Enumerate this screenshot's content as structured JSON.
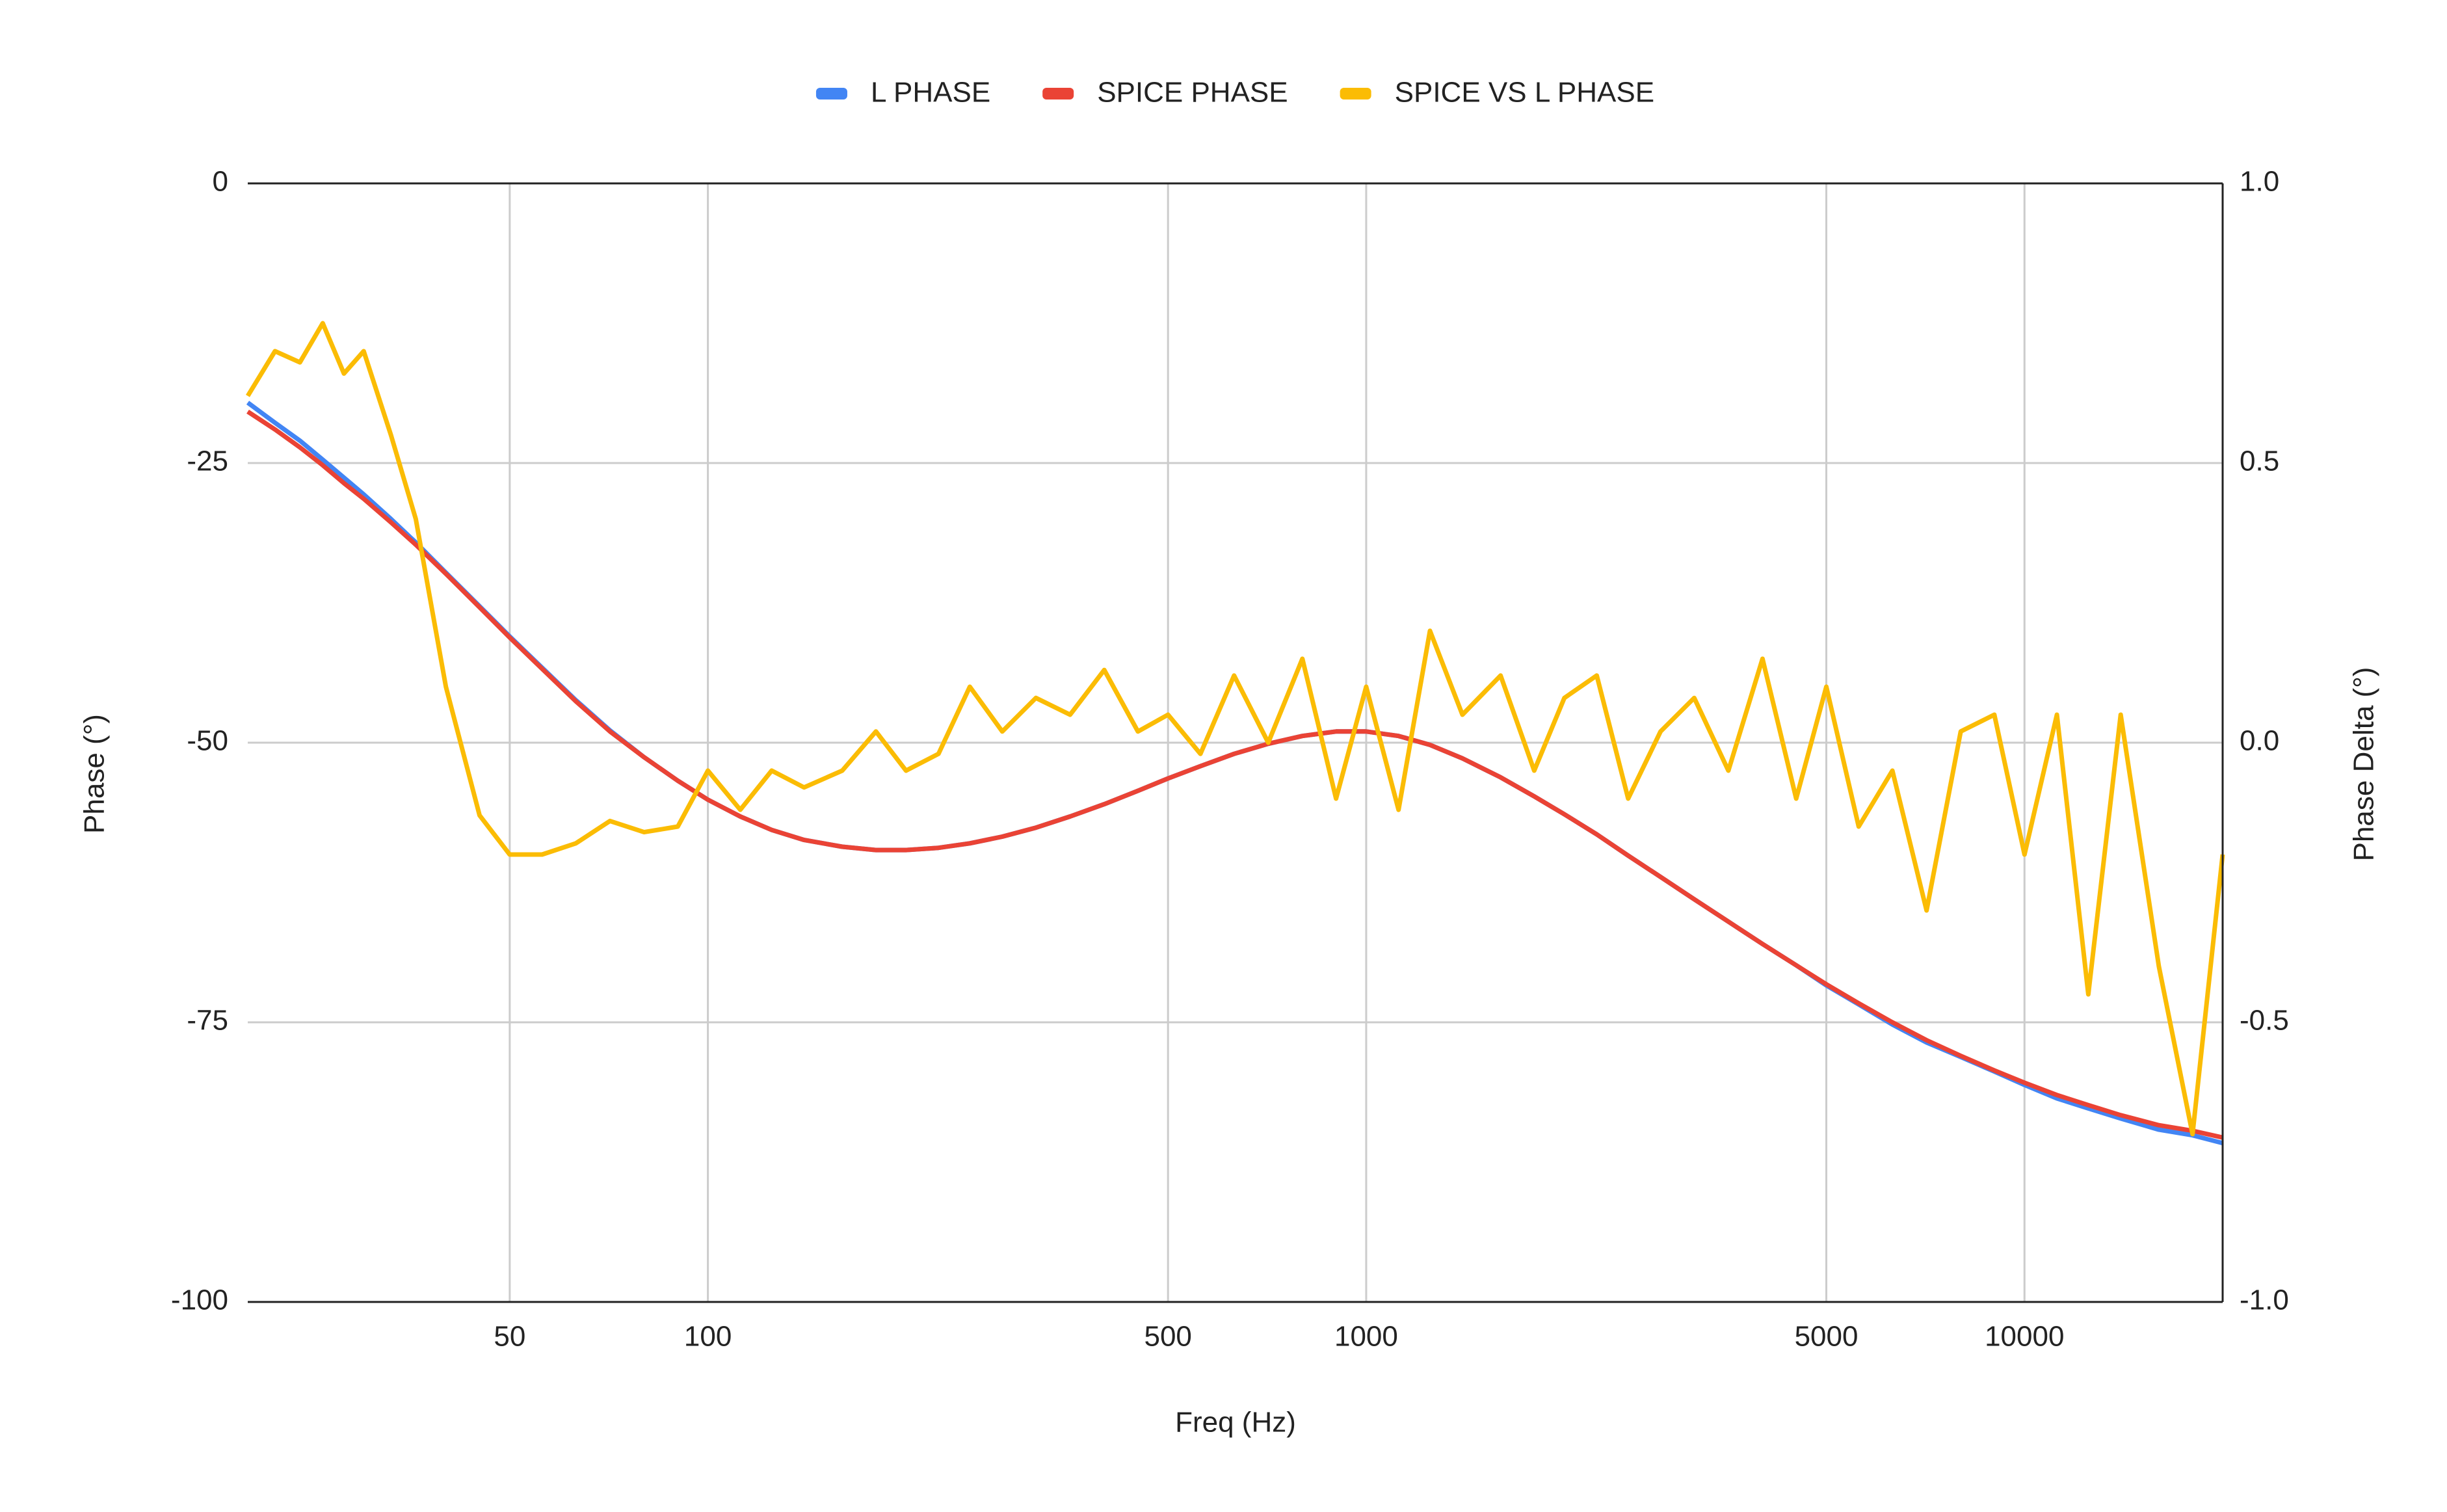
{
  "chart_data": {
    "type": "line",
    "x_label": "Freq (Hz)",
    "y_label": "Phase (°)",
    "y2_label": "Phase Delta (°)",
    "x_scale": "log",
    "grid": true,
    "legend": "top",
    "xlim": [
      20,
      20000
    ],
    "xticks": [
      50,
      100,
      500,
      1000,
      5000,
      10000
    ],
    "ylim": [
      -100,
      0
    ],
    "yticks": [
      0,
      -25,
      -50,
      -75,
      -100
    ],
    "y2lim": [
      -1,
      1
    ],
    "y2ticks": [
      {
        "value": 1,
        "label": "1.0"
      },
      0.5,
      {
        "value": 0,
        "label": "0.0"
      },
      -0.5,
      {
        "value": -1,
        "label": "-1.0"
      }
    ],
    "x": [
      20,
      22,
      24,
      26,
      28,
      30,
      33,
      36,
      40,
      45,
      50,
      56,
      63,
      71,
      80,
      90,
      100,
      112,
      125,
      140,
      160,
      180,
      200,
      224,
      250,
      280,
      315,
      355,
      400,
      450,
      500,
      560,
      630,
      710,
      800,
      900,
      1000,
      1120,
      1250,
      1400,
      1600,
      1800,
      2000,
      2240,
      2500,
      2800,
      3150,
      3550,
      4000,
      4500,
      5000,
      5600,
      6300,
      7100,
      8000,
      9000,
      10000,
      11200,
      12500,
      14000,
      16000,
      18000,
      20000
    ],
    "series": [
      {
        "name": "L PHASE",
        "color": "#4285f4",
        "axis": "y",
        "values": [
          -19.6,
          -21.4,
          -23.0,
          -24.7,
          -26.3,
          -27.8,
          -30.0,
          -32.1,
          -34.8,
          -37.8,
          -40.5,
          -43.3,
          -46.2,
          -48.9,
          -51.3,
          -53.4,
          -55.1,
          -56.6,
          -57.8,
          -58.7,
          -59.3,
          -59.6,
          -59.6,
          -59.4,
          -59.0,
          -58.4,
          -57.6,
          -56.6,
          -55.5,
          -54.3,
          -53.2,
          -52.1,
          -51.0,
          -50.1,
          -49.4,
          -49.0,
          -49.0,
          -49.4,
          -50.2,
          -51.4,
          -53.1,
          -54.8,
          -56.4,
          -58.2,
          -60.1,
          -62.0,
          -64.0,
          -66.0,
          -68.0,
          -69.9,
          -71.7,
          -73.4,
          -75.2,
          -76.8,
          -78.1,
          -79.4,
          -80.6,
          -81.8,
          -82.7,
          -83.6,
          -84.6,
          -85.1,
          -85.8
        ]
      },
      {
        "name": "SPICE PHASE",
        "color": "#ea4335",
        "axis": "y",
        "values": [
          -20.4,
          -22.0,
          -23.6,
          -25.2,
          -26.8,
          -28.2,
          -30.3,
          -32.3,
          -34.9,
          -37.9,
          -40.6,
          -43.4,
          -46.3,
          -49.0,
          -51.3,
          -53.4,
          -55.1,
          -56.6,
          -57.8,
          -58.7,
          -59.3,
          -59.6,
          -59.6,
          -59.4,
          -59.0,
          -58.4,
          -57.6,
          -56.6,
          -55.5,
          -54.3,
          -53.2,
          -52.1,
          -51.0,
          -50.1,
          -49.4,
          -49.0,
          -49.0,
          -49.4,
          -50.2,
          -51.4,
          -53.1,
          -54.8,
          -56.4,
          -58.2,
          -60.1,
          -62.0,
          -64.0,
          -66.0,
          -68.0,
          -69.9,
          -71.6,
          -73.3,
          -75.0,
          -76.6,
          -78.0,
          -79.3,
          -80.4,
          -81.5,
          -82.4,
          -83.3,
          -84.2,
          -84.7,
          -85.3
        ]
      },
      {
        "name": "SPICE VS L PHASE",
        "color": "#fbbc04",
        "axis": "y2",
        "values": [
          0.62,
          0.7,
          0.68,
          0.75,
          0.66,
          0.7,
          0.55,
          0.4,
          0.1,
          -0.13,
          -0.2,
          -0.2,
          -0.18,
          -0.14,
          -0.16,
          -0.15,
          -0.05,
          -0.12,
          -0.05,
          -0.08,
          -0.05,
          0.02,
          -0.05,
          -0.02,
          0.1,
          0.02,
          0.08,
          0.05,
          0.13,
          0.02,
          0.05,
          -0.02,
          0.12,
          0.0,
          0.15,
          -0.1,
          0.1,
          -0.12,
          0.2,
          0.05,
          0.12,
          -0.05,
          0.08,
          0.12,
          -0.1,
          0.02,
          0.08,
          -0.05,
          0.15,
          -0.1,
          0.1,
          -0.15,
          -0.05,
          -0.3,
          0.02,
          0.05,
          -0.2,
          0.05,
          -0.45,
          0.05,
          -0.4,
          -0.7,
          -0.2
        ]
      }
    ]
  }
}
